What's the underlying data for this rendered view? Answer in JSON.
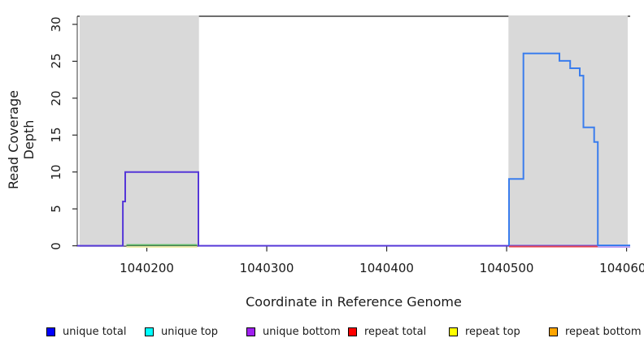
{
  "chart_data": {
    "type": "line",
    "title": "",
    "x_axis": {
      "label": "Coordinate in Reference Genome",
      "ticks": [
        1040200,
        1040300,
        1040400,
        1040500,
        1040600
      ],
      "tick_labels": [
        "1040200",
        "1040300",
        "1040400",
        "1040500",
        "1040600"
      ],
      "xlim": [
        1040142,
        1040603
      ]
    },
    "y_axis": {
      "label": "Read Coverage Depth",
      "ticks": [
        0,
        5,
        10,
        15,
        20,
        25,
        30
      ],
      "tick_labels": [
        "0",
        "5",
        "10",
        "15",
        "20",
        "25",
        "30"
      ],
      "ylim": [
        0,
        31.1
      ]
    },
    "grid": false,
    "repeat_regions": {
      "fill": "#d9d9d9",
      "regions": [
        {
          "start": 1040144,
          "end": 1040243.5
        },
        {
          "start": 1040501.5,
          "end": 1040601
        }
      ]
    },
    "series": [
      {
        "name": "unique-bottom-total-left",
        "color": "#5537d8",
        "width": 2,
        "dy": 0,
        "points": [
          [
            1040142,
            0
          ],
          [
            1040180,
            0
          ],
          [
            1040180,
            6
          ],
          [
            1040182,
            6
          ],
          [
            1040182,
            10
          ],
          [
            1040243,
            10
          ],
          [
            1040243,
            0
          ],
          [
            1040603,
            0
          ]
        ]
      },
      {
        "name": "baseline-blend-yellow",
        "color": "#efefae",
        "width": 2,
        "dy": 1.5,
        "points": [
          [
            1040183,
            0
          ],
          [
            1040242,
            0
          ]
        ]
      },
      {
        "name": "baseline-blend-green",
        "color": "#5fba68",
        "width": 2,
        "dy": -1,
        "points": [
          [
            1040183,
            0
          ],
          [
            1040242,
            0
          ]
        ]
      },
      {
        "name": "repeat-baseline-red",
        "color": "#ea4c55",
        "width": 2,
        "dy": 1,
        "points": [
          [
            1040502,
            0
          ],
          [
            1040576,
            0
          ]
        ]
      },
      {
        "name": "baseline-blend-lavender",
        "color": "#c2a6f2",
        "width": 2,
        "dy": 1.5,
        "points": [
          [
            1040576,
            0
          ],
          [
            1040603,
            0
          ]
        ]
      },
      {
        "name": "unique-top-total-right",
        "color": "#3a7ded",
        "width": 2,
        "dy": -0.5,
        "points": [
          [
            1040502,
            0
          ],
          [
            1040502,
            9
          ],
          [
            1040514,
            9
          ],
          [
            1040514,
            26
          ],
          [
            1040544,
            26
          ],
          [
            1040544,
            25
          ],
          [
            1040553,
            25
          ],
          [
            1040553,
            24
          ],
          [
            1040561,
            24
          ],
          [
            1040561,
            23
          ],
          [
            1040564,
            23
          ],
          [
            1040564,
            16
          ],
          [
            1040573,
            16
          ],
          [
            1040573,
            14
          ],
          [
            1040576,
            14
          ],
          [
            1040576,
            0
          ],
          [
            1040603,
            0
          ]
        ]
      }
    ],
    "legend": [
      {
        "label": "unique total",
        "color": "#0000ff"
      },
      {
        "label": "unique top",
        "color": "#00ffff"
      },
      {
        "label": "unique bottom",
        "color": "#a020f0"
      },
      {
        "label": "repeat total",
        "color": "#ff0000"
      },
      {
        "label": "repeat top",
        "color": "#ffff00"
      },
      {
        "label": "repeat bottom",
        "color": "#ffa500"
      }
    ],
    "legend_position": "bottom"
  }
}
